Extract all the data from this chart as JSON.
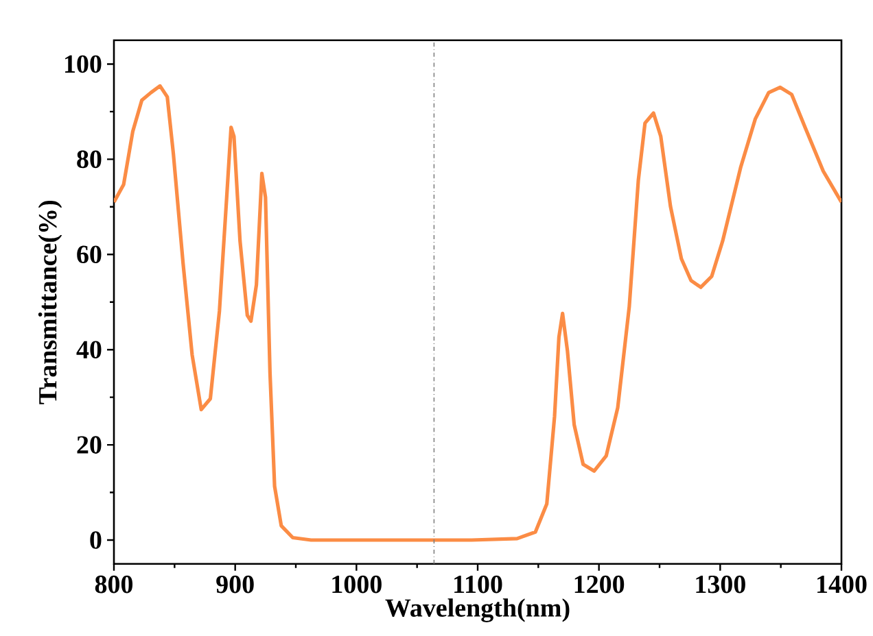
{
  "chart_data": {
    "type": "line",
    "xlabel": "Wavelength(nm)",
    "ylabel": "Transmittance(%)",
    "xlim": [
      800,
      1400
    ],
    "ylim": [
      -5,
      105
    ],
    "xticks": [
      800,
      900,
      1000,
      1100,
      1200,
      1300,
      1400
    ],
    "yticks": [
      0,
      20,
      40,
      60,
      80,
      100
    ],
    "grid": false,
    "marker": "none",
    "line_style": "solid",
    "ref_lines": [
      {
        "axis": "x",
        "value": 1064,
        "color": "#808080",
        "line_style": "dashdot"
      }
    ],
    "series": [
      {
        "color": "#fb8c45",
        "x": [
          800,
          808,
          815.5,
          823,
          830.5,
          838,
          844,
          849,
          857,
          864.5,
          872,
          879.5,
          887,
          893,
          896.6,
          899,
          904,
          910,
          913,
          917.5,
          922,
          925,
          928.7,
          932.5,
          938,
          947.5,
          962.6,
          1000,
          1050,
          1095,
          1132.5,
          1147.6,
          1157,
          1163.4,
          1167,
          1170,
          1174,
          1179.6,
          1187,
          1196,
          1206,
          1215.5,
          1225,
          1232.5,
          1238,
          1245,
          1251,
          1259,
          1268,
          1276,
          1284,
          1293,
          1302,
          1317,
          1329,
          1340,
          1349.5,
          1359,
          1370,
          1385,
          1400
        ],
        "values": [
          71.0,
          74.7,
          85.8,
          92.4,
          94.0,
          95.4,
          93.1,
          81.2,
          58.2,
          38.9,
          27.4,
          29.7,
          48.1,
          72.0,
          86.7,
          84.8,
          62.8,
          47.2,
          46.0,
          53.6,
          77.0,
          72.0,
          35.2,
          11.3,
          3.0,
          0.5,
          0,
          0,
          0,
          0,
          0.3,
          1.7,
          7.6,
          26,
          42.6,
          47.6,
          39.8,
          24.2,
          15.9,
          14.5,
          17.7,
          27.8,
          49,
          75.6,
          87.6,
          89.7,
          84.8,
          70.1,
          59.1,
          54.5,
          53.1,
          55.4,
          62.8,
          78.4,
          88.5,
          94.0,
          95.1,
          93.6,
          86.7,
          77.5,
          71.0
        ]
      }
    ]
  }
}
